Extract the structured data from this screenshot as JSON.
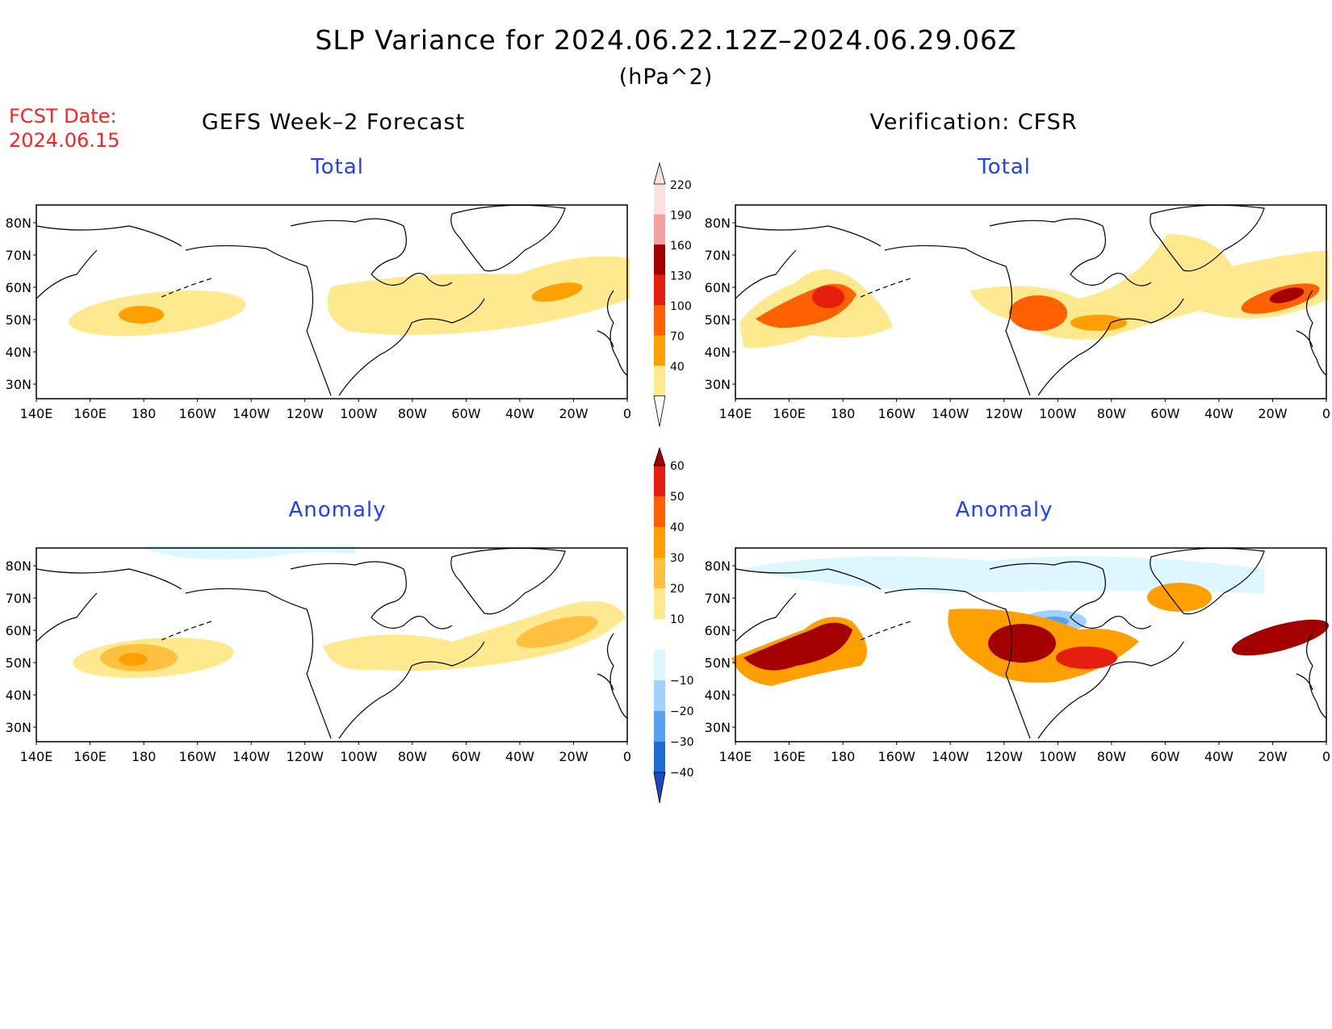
{
  "title": "SLP Variance for 2024.06.22.12Z–2024.06.29.06Z",
  "units": "(hPa^2)",
  "fcst_label": "FCST Date:",
  "fcst_date": "2024.06.15",
  "left_column_title": "GEFS Week–2 Forecast",
  "right_column_title": "Verification: CFSR",
  "panels": {
    "forecast_total": {
      "subtitle": "Total"
    },
    "forecast_anomaly": {
      "subtitle": "Anomaly"
    },
    "verif_total": {
      "subtitle": "Total"
    },
    "verif_anomaly": {
      "subtitle": "Anomaly"
    }
  },
  "lat_labels": [
    "80N",
    "70N",
    "60N",
    "50N",
    "40N",
    "30N"
  ],
  "lon_labels": [
    "140E",
    "160E",
    "180",
    "160W",
    "140W",
    "120W",
    "100W",
    "80W",
    "60W",
    "40W",
    "20W",
    "0"
  ],
  "total_colorbar": {
    "levels": [
      "40",
      "70",
      "100",
      "130",
      "160",
      "190",
      "220"
    ],
    "colors": [
      "#ffe98f",
      "#ffa000",
      "#ff6000",
      "#e51e0f",
      "#a50000",
      "#f2a0a0",
      "#fde0e0"
    ]
  },
  "anomaly_colorbar": {
    "levels": [
      "60",
      "50",
      "40",
      "30",
      "20",
      "10",
      "−10",
      "−20",
      "−30",
      "−40"
    ],
    "colors": [
      "#a50000",
      "#e51e0f",
      "#ff6000",
      "#ffa000",
      "#ffc040",
      "#ffe98f",
      "#ffffff",
      "#dcf7ff",
      "#a0d2ff",
      "#5aa0f0",
      "#1e6ed2",
      "#1e46c8"
    ]
  }
}
